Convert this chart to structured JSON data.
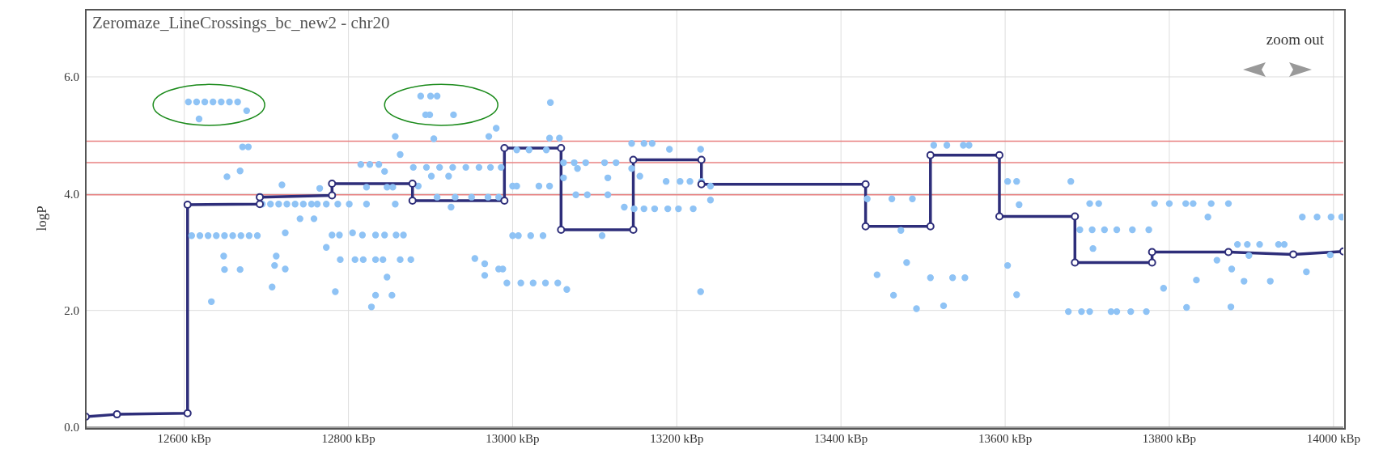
{
  "chart_data": {
    "type": "scatter",
    "title": "Zeromaze_LineCrossings_bc_new2 - chr20",
    "ylabel": "logP",
    "xlim": [
      12480,
      14012
    ],
    "ylim": [
      0,
      7.15
    ],
    "xticks": [
      {
        "value": 12600,
        "label": "12600 kBp"
      },
      {
        "value": 12800,
        "label": "12800 kBp"
      },
      {
        "value": 13000,
        "label": "13000 kBp"
      },
      {
        "value": 13200,
        "label": "13200 kBp"
      },
      {
        "value": 13400,
        "label": "13400 kBp"
      },
      {
        "value": 13600,
        "label": "13600 kBp"
      },
      {
        "value": 13800,
        "label": "13800 kBp"
      },
      {
        "value": 14000,
        "label": "14000 kBp"
      }
    ],
    "yticks": [
      {
        "value": 0,
        "label": "0.0"
      },
      {
        "value": 2,
        "label": "2.0"
      },
      {
        "value": 4,
        "label": "4.0"
      },
      {
        "value": 6,
        "label": "6.0"
      }
    ],
    "grid": true,
    "marker": "circle",
    "ref_lines": [
      {
        "axis": "y",
        "value": 4.9,
        "color": "#e88080"
      },
      {
        "axis": "y",
        "value": 4.53,
        "color": "#e88080"
      },
      {
        "axis": "y",
        "value": 3.98,
        "color": "#e88080"
      }
    ],
    "annotations": [
      "zoom out"
    ],
    "series": [
      {
        "color": "#8fc3f5",
        "x": [
          12605,
          12615,
          12625,
          12635,
          12645,
          12655,
          12665,
          12676,
          12618,
          12671,
          12678,
          12668,
          12652,
          12609,
          12619,
          12629,
          12639,
          12649,
          12659,
          12669,
          12679,
          12689,
          12648,
          12649,
          12668,
          12633,
          12719,
          12695,
          12705,
          12715,
          12725,
          12735,
          12745,
          12755,
          12762,
          12741,
          12758,
          12723,
          12712,
          12710,
          12723,
          12707,
          12765,
          12773,
          12787,
          12801,
          12822,
          12780,
          12789,
          12805,
          12817,
          12773,
          12790,
          12808,
          12818,
          12784,
          12833,
          12844,
          12858,
          12867,
          12833,
          12842,
          12863,
          12876,
          12847,
          12833,
          12853,
          12828,
          12815,
          12826,
          12837,
          12844,
          12822,
          12847,
          12854,
          12857,
          12857,
          12863,
          12888,
          12900,
          12908,
          12894,
          12899,
          12928,
          12904,
          12879,
          12895,
          12911,
          12927,
          12943,
          12959,
          12973,
          12986,
          12901,
          12922,
          12885,
          12908,
          12930,
          12950,
          12970,
          12983,
          12925,
          12971,
          12980,
          12954,
          12966,
          12966,
          12983,
          13000,
          13000,
          12993,
          13010,
          13025,
          13040,
          13055,
          13066,
          13005,
          13020,
          13041,
          13045,
          13057,
          13046,
          13005,
          13032,
          13045,
          13007,
          13022,
          13037,
          12988,
          13062,
          13062,
          13075,
          13089,
          13112,
          13126,
          13079,
          13116,
          13077,
          13091,
          13116,
          13109,
          13136,
          13148,
          13160,
          13173,
          13145,
          13155,
          13145,
          13160,
          13170,
          13191,
          13229,
          13187,
          13204,
          13216,
          13230,
          13189,
          13202,
          13220,
          13229,
          13241,
          13241,
          13432,
          13462,
          13487,
          13473,
          13480,
          13444,
          13464,
          13492,
          13509,
          13513,
          13529,
          13549,
          13556,
          13536,
          13551,
          13525,
          13603,
          13614,
          13680,
          13617,
          13603,
          13614,
          13703,
          13714,
          13691,
          13706,
          13721,
          13707,
          13736,
          13755,
          13775,
          13677,
          13693,
          13703,
          13729,
          13736,
          13753,
          13772,
          13782,
          13800,
          13820,
          13829,
          13851,
          13872,
          13847,
          13793,
          13821,
          13833,
          13858,
          13876,
          13875,
          13891,
          13923,
          13897,
          13883,
          13895,
          13910,
          13933,
          13940,
          13967,
          13996,
          13962,
          13980,
          13997,
          14010
        ],
        "values": [
          5.57,
          5.57,
          5.57,
          5.57,
          5.57,
          5.57,
          5.57,
          5.42,
          5.28,
          4.8,
          4.8,
          4.39,
          4.29,
          3.28,
          3.28,
          3.28,
          3.28,
          3.28,
          3.28,
          3.28,
          3.28,
          3.28,
          2.93,
          2.7,
          2.7,
          2.15,
          4.15,
          3.82,
          3.82,
          3.82,
          3.82,
          3.82,
          3.82,
          3.82,
          3.82,
          3.57,
          3.57,
          3.33,
          2.93,
          2.77,
          2.71,
          2.4,
          4.09,
          3.82,
          3.82,
          3.82,
          3.82,
          3.29,
          3.29,
          3.33,
          3.29,
          3.08,
          2.87,
          2.87,
          2.87,
          2.32,
          3.29,
          3.29,
          3.29,
          3.29,
          2.87,
          2.87,
          2.87,
          2.87,
          2.57,
          2.26,
          2.26,
          2.06,
          4.5,
          4.5,
          4.5,
          4.38,
          4.11,
          4.11,
          4.11,
          3.82,
          4.98,
          4.67,
          5.67,
          5.67,
          5.67,
          5.35,
          5.35,
          5.35,
          4.94,
          4.45,
          4.45,
          4.45,
          4.45,
          4.45,
          4.45,
          4.45,
          4.45,
          4.3,
          4.3,
          4.13,
          3.94,
          3.94,
          3.94,
          3.94,
          3.94,
          3.77,
          4.98,
          5.12,
          2.89,
          2.8,
          2.6,
          2.71,
          4.13,
          3.28,
          2.47,
          2.47,
          2.47,
          2.47,
          2.47,
          2.36,
          4.75,
          4.75,
          4.75,
          4.95,
          4.95,
          5.56,
          4.13,
          4.13,
          4.13,
          3.28,
          3.28,
          3.28,
          2.71,
          4.53,
          4.27,
          4.53,
          4.53,
          4.53,
          4.53,
          4.43,
          4.27,
          3.98,
          3.98,
          3.98,
          3.28,
          3.77,
          3.74,
          3.74,
          3.74,
          4.43,
          4.3,
          4.86,
          4.86,
          4.86,
          4.76,
          4.76,
          4.21,
          4.21,
          4.21,
          4.21,
          3.74,
          3.74,
          3.74,
          2.32,
          4.13,
          3.89,
          3.91,
          3.91,
          3.91,
          3.37,
          2.82,
          2.61,
          2.26,
          2.03,
          2.56,
          4.83,
          4.83,
          4.83,
          4.83,
          2.56,
          2.56,
          2.08,
          4.21,
          4.21,
          4.21,
          3.81,
          2.77,
          2.27,
          3.83,
          3.83,
          3.38,
          3.38,
          3.38,
          3.06,
          3.38,
          3.38,
          3.38,
          1.98,
          1.98,
          1.98,
          1.98,
          1.98,
          1.98,
          1.98,
          3.83,
          3.83,
          3.83,
          3.83,
          3.83,
          3.83,
          3.6,
          2.38,
          2.05,
          2.52,
          2.86,
          2.71,
          2.06,
          2.5,
          2.5,
          2.94,
          3.13,
          3.13,
          3.13,
          3.13,
          3.13,
          2.66,
          2.95,
          3.6,
          3.6,
          3.6,
          3.6
        ]
      },
      {
        "type": "line",
        "color": "#2e2e7a",
        "x": [
          12480,
          12518,
          12604,
          12604,
          12692,
          12692,
          12780,
          12780,
          12878,
          12878,
          12990,
          12990,
          13059,
          13059,
          13147,
          13147,
          13230,
          13230,
          13430,
          13430,
          13509,
          13509,
          13593,
          13593,
          13685,
          13685,
          13779,
          13779,
          13872,
          13951,
          14012
        ],
        "values": [
          0.18,
          0.22,
          0.24,
          3.81,
          3.82,
          3.94,
          3.97,
          4.17,
          4.17,
          3.88,
          3.88,
          4.78,
          4.78,
          3.38,
          3.38,
          4.58,
          4.58,
          4.16,
          4.16,
          3.44,
          3.44,
          4.66,
          4.66,
          3.61,
          3.61,
          2.82,
          2.82,
          3.0,
          3.0,
          2.96,
          3.01
        ]
      }
    ]
  }
}
